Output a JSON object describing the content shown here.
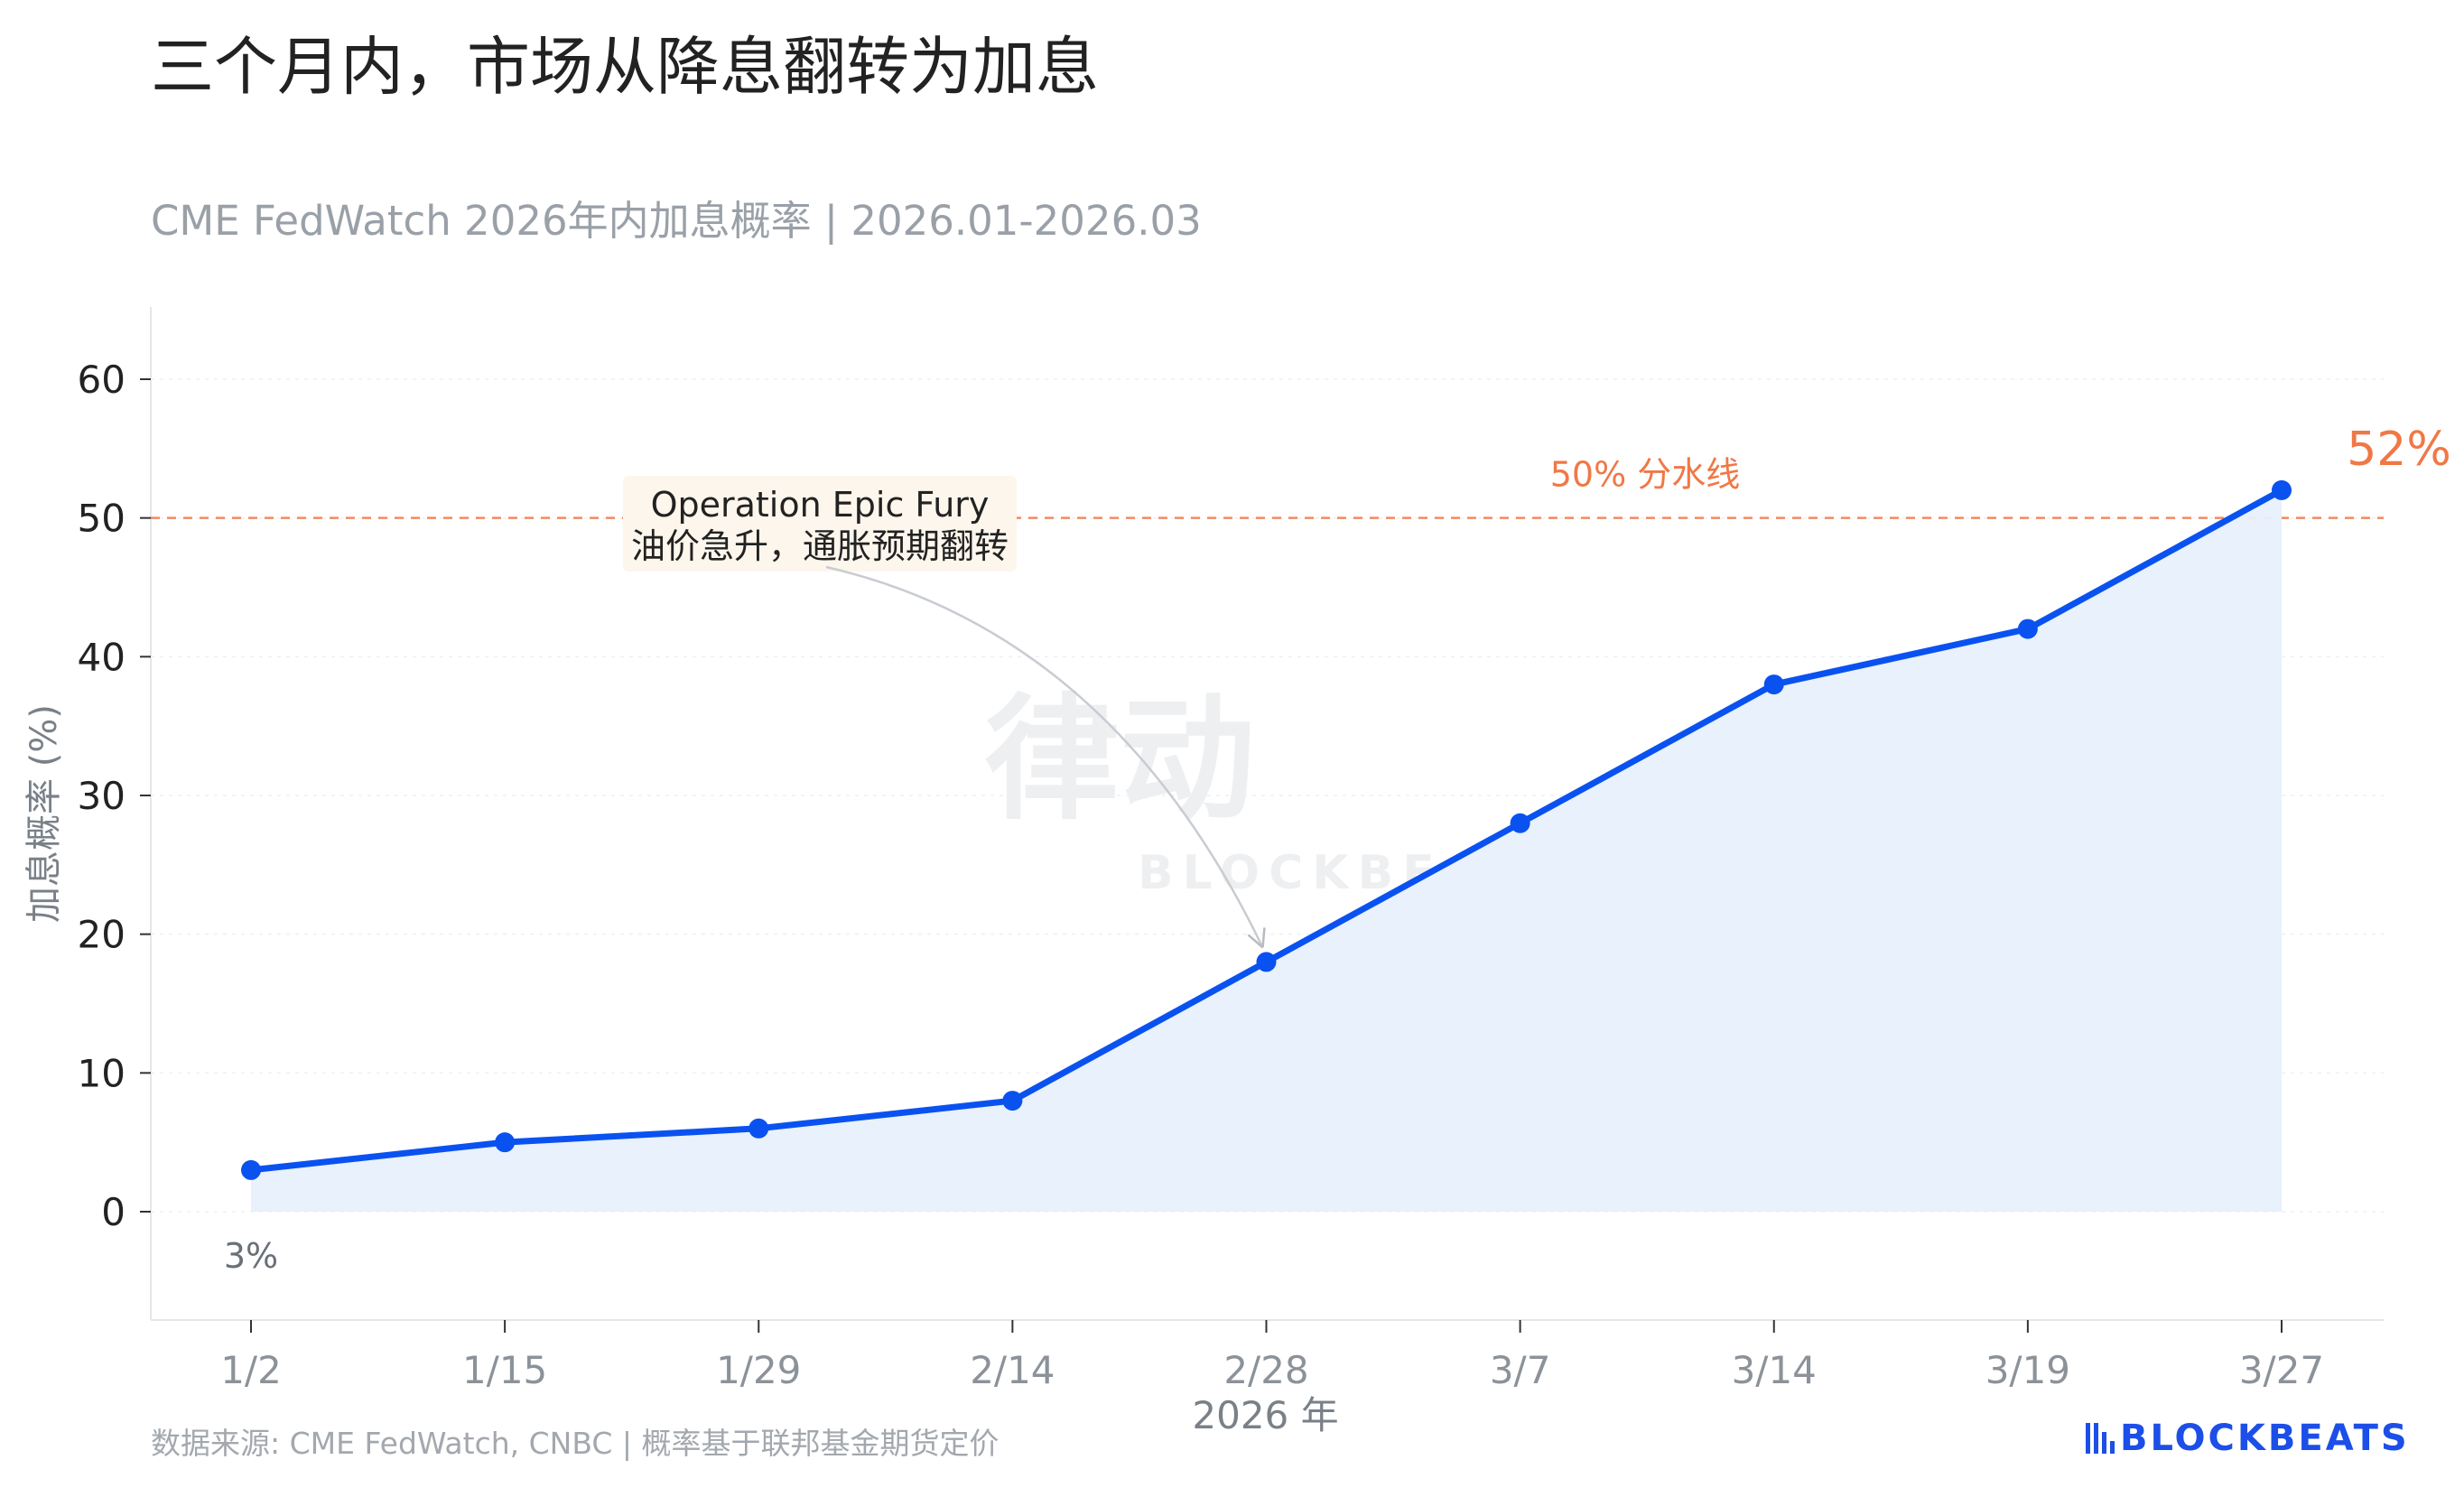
{
  "title": "三个月内，市场从降息翻转为加息",
  "subtitle": "CME FedWatch 2026年内加息概率 | 2026.01-2026.03",
  "source": "数据来源: CME FedWatch, CNBC | 概率基于联邦基金期货定价",
  "brand": "BLOCKBEATS",
  "watermark": {
    "cn": "律动",
    "en": "BLOCKBEATS"
  },
  "colors": {
    "line": "#0a52f0",
    "area": "#e8f0fd",
    "threshold": "#f07846",
    "axis": "#9aa0a8"
  },
  "chart_data": {
    "type": "line",
    "categories": [
      "1/2",
      "1/15",
      "1/29",
      "2/14",
      "2/28",
      "3/7",
      "3/14",
      "3/19",
      "3/27"
    ],
    "series": [
      {
        "values": [
          3,
          5,
          6,
          8,
          18,
          28,
          38,
          42,
          52
        ]
      }
    ],
    "xlabel": "2026 年",
    "ylabel": "加息概率 (%)",
    "ylim": [
      -8,
      65
    ],
    "yticks": [
      0,
      10,
      20,
      30,
      40,
      50,
      60
    ],
    "grid": true,
    "threshold": {
      "value": 50,
      "label": "50% 分水线"
    },
    "annotations": {
      "event": {
        "lines": [
          "Operation Epic Fury",
          "油价急升，通胀预期翻转"
        ],
        "category": "2/28"
      },
      "start_label": "3%",
      "end_label": "52%"
    }
  }
}
